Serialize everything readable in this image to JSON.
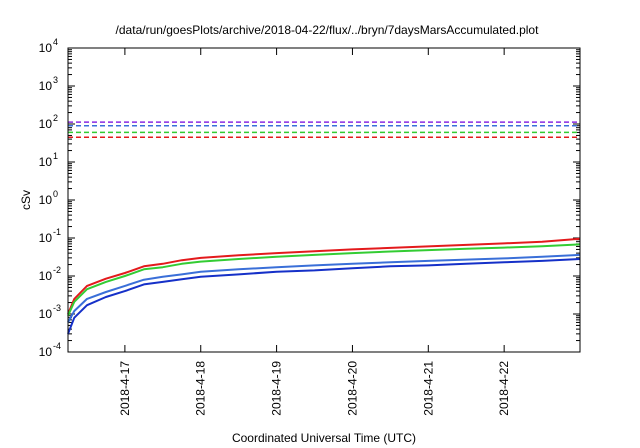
{
  "chart_data": {
    "type": "line",
    "title": "/data/run/goesPlots/archive/2018-04-22/flux/../bryn/7daysMarsAccumulated.plot",
    "xlabel": "Coordinated Universal Time (UTC)",
    "ylabel": "cSv",
    "yscale": "log",
    "ylim": [
      0.0001,
      10000
    ],
    "y_ticks": [
      {
        "value": 0.0001,
        "base": "10",
        "exp": "-4"
      },
      {
        "value": 0.001,
        "base": "10",
        "exp": "-3"
      },
      {
        "value": 0.01,
        "base": "10",
        "exp": "-2"
      },
      {
        "value": 0.1,
        "base": "10",
        "exp": "-1"
      },
      {
        "value": 1,
        "base": "10",
        "exp": "0"
      },
      {
        "value": 10,
        "base": "10",
        "exp": "1"
      },
      {
        "value": 100,
        "base": "10",
        "exp": "2"
      },
      {
        "value": 1000,
        "base": "10",
        "exp": "3"
      },
      {
        "value": 10000,
        "base": "10",
        "exp": "4"
      }
    ],
    "xlim": [
      "2018-04-16 06:00",
      "2018-04-23 00:00"
    ],
    "x_ticks": [
      {
        "value": "2018-04-17 00:00",
        "label": "2018-4-17"
      },
      {
        "value": "2018-04-18 00:00",
        "label": "2018-4-18"
      },
      {
        "value": "2018-04-19 00:00",
        "label": "2018-4-19"
      },
      {
        "value": "2018-04-20 00:00",
        "label": "2018-4-20"
      },
      {
        "value": "2018-04-21 00:00",
        "label": "2018-4-21"
      },
      {
        "value": "2018-04-22 00:00",
        "label": "2018-4-22"
      }
    ],
    "grid": false,
    "series": [
      {
        "color": "#e31a1c",
        "style": "dashed",
        "x": [
          "2018-04-16 06:00",
          "2018-04-23 00:00"
        ],
        "y": [
          45,
          45
        ]
      },
      {
        "color": "#33cc33",
        "style": "dashed",
        "x": [
          "2018-04-16 06:00",
          "2018-04-23 00:00"
        ],
        "y": [
          60,
          60
        ]
      },
      {
        "color": "#3a6fd8",
        "style": "dashed",
        "x": [
          "2018-04-16 06:00",
          "2018-04-23 00:00"
        ],
        "y": [
          90,
          90
        ]
      },
      {
        "color": "#8a2be2",
        "style": "dashed",
        "x": [
          "2018-04-16 06:00",
          "2018-04-23 00:00"
        ],
        "y": [
          112,
          112
        ]
      },
      {
        "color": "#e31a1c",
        "style": "solid",
        "x": [
          "2018-04-16 06:00",
          "2018-04-16 08:00",
          "2018-04-16 12:00",
          "2018-04-16 18:00",
          "2018-04-17 00:00",
          "2018-04-17 06:00",
          "2018-04-17 12:00",
          "2018-04-17 18:00",
          "2018-04-18 00:00",
          "2018-04-18 12:00",
          "2018-04-19 00:00",
          "2018-04-19 12:00",
          "2018-04-20 00:00",
          "2018-04-20 12:00",
          "2018-04-21 00:00",
          "2018-04-21 12:00",
          "2018-04-22 00:00",
          "2018-04-22 12:00",
          "2018-04-23 00:00"
        ],
        "y": [
          0.001,
          0.0025,
          0.0055,
          0.0085,
          0.012,
          0.018,
          0.021,
          0.026,
          0.03,
          0.035,
          0.04,
          0.045,
          0.05,
          0.055,
          0.06,
          0.066,
          0.072,
          0.08,
          0.095
        ]
      },
      {
        "color": "#33cc33",
        "style": "solid",
        "x": [
          "2018-04-16 06:00",
          "2018-04-16 08:00",
          "2018-04-16 12:00",
          "2018-04-16 18:00",
          "2018-04-17 00:00",
          "2018-04-17 06:00",
          "2018-04-17 12:00",
          "2018-04-17 18:00",
          "2018-04-18 00:00",
          "2018-04-18 12:00",
          "2018-04-19 00:00",
          "2018-04-19 12:00",
          "2018-04-20 00:00",
          "2018-04-20 12:00",
          "2018-04-21 00:00",
          "2018-04-21 12:00",
          "2018-04-22 00:00",
          "2018-04-22 12:00",
          "2018-04-23 00:00"
        ],
        "y": [
          0.0009,
          0.0021,
          0.0045,
          0.007,
          0.01,
          0.015,
          0.017,
          0.021,
          0.024,
          0.028,
          0.032,
          0.036,
          0.04,
          0.044,
          0.048,
          0.052,
          0.056,
          0.061,
          0.068
        ]
      },
      {
        "color": "#3a6fd8",
        "style": "solid",
        "x": [
          "2018-04-16 06:00",
          "2018-04-16 08:00",
          "2018-04-16 12:00",
          "2018-04-16 18:00",
          "2018-04-17 00:00",
          "2018-04-17 06:00",
          "2018-04-17 12:00",
          "2018-04-17 18:00",
          "2018-04-18 00:00",
          "2018-04-18 12:00",
          "2018-04-19 00:00",
          "2018-04-19 12:00",
          "2018-04-20 00:00",
          "2018-04-20 12:00",
          "2018-04-21 00:00",
          "2018-04-21 12:00",
          "2018-04-22 00:00",
          "2018-04-22 12:00",
          "2018-04-23 00:00"
        ],
        "y": [
          0.0006,
          0.0012,
          0.0025,
          0.0038,
          0.0055,
          0.008,
          0.0095,
          0.011,
          0.013,
          0.015,
          0.017,
          0.019,
          0.021,
          0.023,
          0.025,
          0.027,
          0.029,
          0.032,
          0.036
        ]
      },
      {
        "color": "#1530c8",
        "style": "solid",
        "x": [
          "2018-04-16 06:00",
          "2018-04-16 08:00",
          "2018-04-16 12:00",
          "2018-04-16 18:00",
          "2018-04-17 00:00",
          "2018-04-17 06:00",
          "2018-04-17 12:00",
          "2018-04-17 18:00",
          "2018-04-18 00:00",
          "2018-04-18 12:00",
          "2018-04-19 00:00",
          "2018-04-19 12:00",
          "2018-04-20 00:00",
          "2018-04-20 12:00",
          "2018-04-21 00:00",
          "2018-04-21 12:00",
          "2018-04-22 00:00",
          "2018-04-22 12:00",
          "2018-04-23 00:00"
        ],
        "y": [
          0.0003,
          0.0008,
          0.0017,
          0.0028,
          0.004,
          0.006,
          0.007,
          0.0082,
          0.0095,
          0.011,
          0.013,
          0.014,
          0.016,
          0.018,
          0.019,
          0.021,
          0.023,
          0.025,
          0.028
        ]
      }
    ]
  }
}
